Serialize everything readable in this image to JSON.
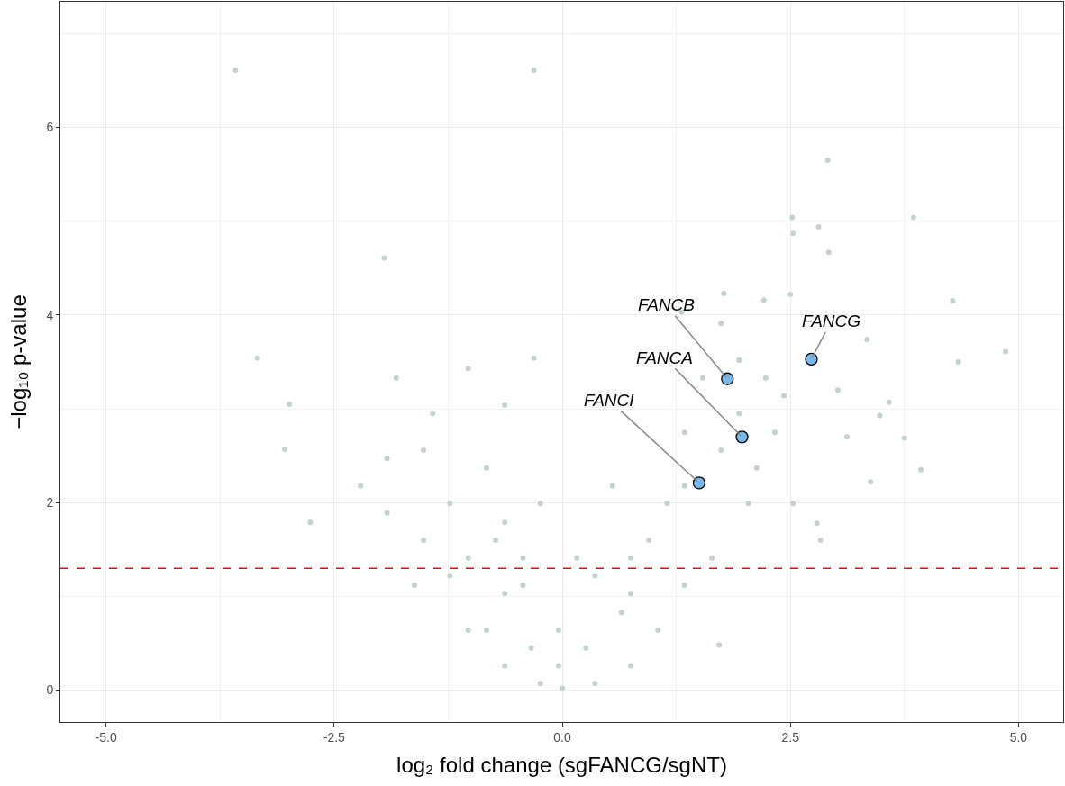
{
  "chart_data": {
    "type": "scatter",
    "xlabel": "log₂ fold change (sgFANCG/sgNT)",
    "ylabel": "−log₁₀ p-value",
    "xlim": [
      -5.5,
      5.49
    ],
    "ylim": [
      -0.34,
      7.34
    ],
    "xticks": [
      {
        "value": -5,
        "label": "-5.0"
      },
      {
        "value": -2.5,
        "label": "-2.5"
      },
      {
        "value": 0,
        "label": "0.0"
      },
      {
        "value": 2.5,
        "label": "2.5"
      },
      {
        "value": 5,
        "label": "5.0"
      }
    ],
    "yticks": [
      0,
      2,
      4,
      6
    ],
    "grid": true,
    "marker": "circle",
    "series": [
      {
        "color": "#c5d0cf",
        "x": [
          -3.58,
          -0.31,
          2.91,
          -1.95,
          2.52,
          2.53,
          2.81,
          2.92,
          3.85,
          4.28,
          4.86,
          -3.34,
          -0.31,
          -2.99,
          -3.04,
          -2.76,
          3.75,
          3.93,
          3.48,
          3.38,
          2.79,
          1.72,
          1.31,
          1.77,
          2.21,
          2.5,
          3.02,
          3.12,
          3.58,
          3.34,
          4.34,
          -1.92,
          -1.52,
          -1.82,
          -1.03,
          -1.42,
          -0.83,
          -0.73,
          -1.23,
          -1.62,
          -1.03,
          -0.63,
          -0.24,
          0,
          0.36,
          0.75,
          1.05,
          1.34,
          0.75,
          0.55,
          1.15,
          1.34,
          1.54,
          1.74,
          1.94,
          2.23,
          2.33,
          2.04,
          1.64,
          -0.04,
          -0.43,
          0.16,
          -0.24,
          -0.63,
          0.65,
          -0.83,
          -0.34,
          0.26,
          -0.04,
          -1.23,
          -0.63,
          0.95,
          1.34,
          1.74,
          2.13,
          1.94,
          2.43,
          2.53,
          2.83,
          -1.92,
          -2.21,
          -0.63,
          -1.03,
          -1.52,
          0.36,
          0.75,
          -0.43
        ],
        "values": [
          6.61,
          6.61,
          5.65,
          4.61,
          5.04,
          4.87,
          4.94,
          4.67,
          5.04,
          4.15,
          3.61,
          3.54,
          3.54,
          3.05,
          2.57,
          1.79,
          2.69,
          2.35,
          2.93,
          2.22,
          1.78,
          0.48,
          4.03,
          4.23,
          4.16,
          4.22,
          3.2,
          2.7,
          3.07,
          3.74,
          3.5,
          1.89,
          2.56,
          3.33,
          3.43,
          2.95,
          2.37,
          1.6,
          1.22,
          1.12,
          0.64,
          0.26,
          0.07,
          0.02,
          0.07,
          0.26,
          0.64,
          1.12,
          1.41,
          2.18,
          1.99,
          2.75,
          3.33,
          3.91,
          3.52,
          3.33,
          2.75,
          1.99,
          1.41,
          0.64,
          1.12,
          1.41,
          1.99,
          1.03,
          0.83,
          0.64,
          0.45,
          0.45,
          0.26,
          1.99,
          1.79,
          1.6,
          2.18,
          2.56,
          2.37,
          2.95,
          3.14,
          1.99,
          1.6,
          2.47,
          2.18,
          3.04,
          1.41,
          1.6,
          1.22,
          1.03,
          1.41
        ]
      },
      {
        "color": "#78b8e8",
        "x": [
          2.73,
          1.81,
          1.97,
          1.5
        ],
        "values": [
          3.53,
          3.32,
          2.7,
          2.21
        ]
      }
    ],
    "annotations": [
      {
        "text": "FANCG",
        "x": 2.73,
        "y": 3.53
      },
      {
        "text": "FANCB",
        "x": 1.81,
        "y": 3.32
      },
      {
        "text": "FANCA",
        "x": 1.97,
        "y": 2.7
      },
      {
        "text": "FANCI",
        "x": 1.5,
        "y": 2.21
      }
    ],
    "ref_lines": [
      {
        "axis": "y",
        "value": 1.3,
        "color": "#ff0000",
        "line_style": "dashed"
      }
    ]
  }
}
